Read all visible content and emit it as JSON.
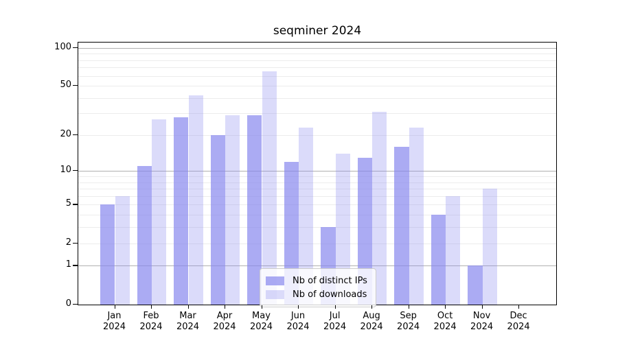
{
  "title": "seqminer 2024",
  "year_label": "2024",
  "legend": {
    "position": "lower center",
    "items": [
      {
        "label": "Nb of distinct IPs",
        "color": "rgba(136,136,238,0.7)"
      },
      {
        "label": "Nb of downloads",
        "color": "rgba(136,136,238,0.3)"
      }
    ]
  },
  "colors": {
    "bar_base": "#8888ee",
    "series_ips": "rgba(136,136,238,0.7)",
    "series_downloads": "rgba(136,136,238,0.3)",
    "major_gridline": "#b0b0b0",
    "minor_gridline": "#ececec",
    "spine": "#000000",
    "background": "#ffffff"
  },
  "chart_data": {
    "type": "bar",
    "title": "seqminer 2024",
    "categories": [
      "Jan 2024",
      "Feb 2024",
      "Mar 2024",
      "Apr 2024",
      "May 2024",
      "Jun 2024",
      "Jul 2024",
      "Aug 2024",
      "Sep 2024",
      "Oct 2024",
      "Nov 2024",
      "Dec 2024"
    ],
    "months": [
      "Jan",
      "Feb",
      "Mar",
      "Apr",
      "May",
      "Jun",
      "Jul",
      "Aug",
      "Sep",
      "Oct",
      "Nov",
      "Dec"
    ],
    "series": [
      {
        "name": "Nb of distinct IPs",
        "values": [
          5,
          11,
          28,
          20,
          29,
          12,
          3,
          13,
          16,
          4,
          1,
          0
        ]
      },
      {
        "name": "Nb of downloads",
        "values": [
          6,
          27,
          42,
          29,
          65,
          23,
          14,
          31,
          23,
          6,
          7,
          0
        ]
      }
    ],
    "xlabel": "",
    "ylabel": "",
    "yscale": "log1p",
    "ylim": [
      0,
      110
    ],
    "y_ticks": [
      0,
      1,
      2,
      5,
      10,
      20,
      50,
      100
    ],
    "y_major_gridlines": [
      1,
      10,
      100
    ],
    "y_minor_gridlines": [
      2,
      3,
      4,
      5,
      6,
      7,
      8,
      9,
      20,
      30,
      40,
      50,
      60,
      70,
      80,
      90
    ],
    "grid": true,
    "legend_position": "lower center"
  }
}
